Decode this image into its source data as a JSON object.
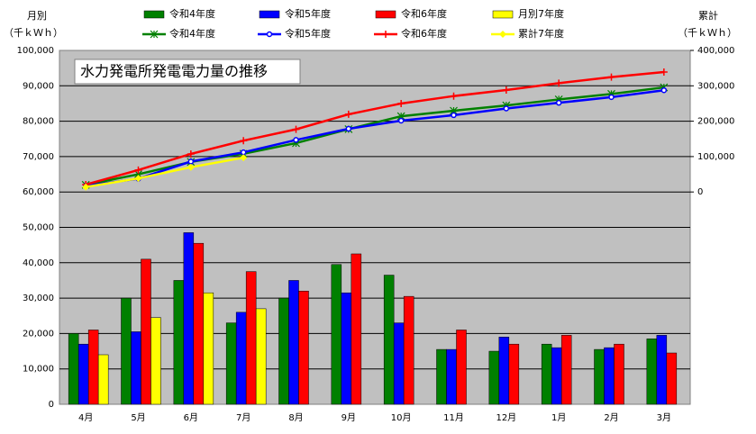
{
  "chart_data": {
    "type": "combo",
    "title": "水力発電所発電電力量の推移",
    "y_label": "月別",
    "y_unit": "（千ｋＷｈ）",
    "y2_label": "累計",
    "y2_unit": "（千ｋＷｈ）",
    "categories": [
      "4月",
      "5月",
      "6月",
      "7月",
      "8月",
      "9月",
      "10月",
      "11月",
      "12月",
      "1月",
      "2月",
      "3月"
    ],
    "ylim": [
      0,
      100000
    ],
    "yticks": [
      0,
      {
        "value": 10000,
        "label": "10,000"
      },
      {
        "value": 20000,
        "label": "20,000"
      },
      {
        "value": 30000,
        "label": "30,000"
      },
      {
        "value": 40000,
        "label": "40,000"
      },
      {
        "value": 50000,
        "label": "50,000"
      },
      {
        "value": 60000,
        "label": "60,000"
      },
      {
        "value": 70000,
        "label": "70,000"
      },
      {
        "value": 80000,
        "label": "80,000"
      },
      {
        "value": 90000,
        "label": "90,000"
      },
      {
        "value": 100000,
        "label": "100,000"
      }
    ],
    "y2lim": [
      -600000,
      400000
    ],
    "y2ticks": [
      0,
      {
        "value": 100000,
        "label": "100,000"
      },
      {
        "value": 200000,
        "label": "200,000"
      },
      {
        "value": 300000,
        "label": "300,000"
      },
      {
        "value": 400000,
        "label": "400,000"
      }
    ],
    "grid": true,
    "series": [
      {
        "name": "令和4年度",
        "type": "bar",
        "color": "#008000",
        "values": [
          20000,
          30000,
          35000,
          23000,
          30000,
          39500,
          36500,
          15500,
          15000,
          17000,
          15500,
          18500
        ]
      },
      {
        "name": "令和5年度",
        "type": "bar",
        "color": "#0000ff",
        "values": [
          17000,
          20500,
          48500,
          26000,
          35000,
          31500,
          23000,
          15500,
          19000,
          16000,
          16000,
          19500
        ]
      },
      {
        "name": "令和6年度",
        "type": "bar",
        "color": "#ff0000",
        "values": [
          21000,
          41000,
          45500,
          37500,
          32000,
          42500,
          30500,
          21000,
          17000,
          19500,
          17000,
          14500
        ]
      },
      {
        "name": "月別7年度",
        "type": "bar",
        "color": "#ffff00",
        "values": [
          14000,
          24500,
          31500,
          27000,
          null,
          null,
          null,
          null,
          null,
          null,
          null,
          null
        ]
      },
      {
        "name": "令和4年度",
        "type": "line",
        "axis": "y2",
        "marker": "star",
        "color": "#008000",
        "values": [
          20000,
          50000,
          85000,
          108000,
          138000,
          177500,
          214000,
          229500,
          244500,
          261500,
          277000,
          295500
        ]
      },
      {
        "name": "令和5年度",
        "type": "line",
        "axis": "y2",
        "marker": "circle",
        "color": "#0000ff",
        "values": [
          17000,
          37500,
          86000,
          112000,
          147000,
          178500,
          201500,
          217000,
          236000,
          252000,
          268000,
          287500
        ]
      },
      {
        "name": "令和6年度",
        "type": "line",
        "axis": "y2",
        "marker": "plus",
        "color": "#ff0000",
        "values": [
          21000,
          62000,
          107500,
          145000,
          177000,
          219500,
          250000,
          271000,
          288000,
          307500,
          324500,
          339000
        ]
      },
      {
        "name": "累計7年度",
        "type": "line",
        "axis": "y2",
        "marker": "diamond",
        "color": "#ffff00",
        "values": [
          14000,
          38500,
          70000,
          97000,
          null,
          null,
          null,
          null,
          null,
          null,
          null,
          null
        ]
      }
    ]
  }
}
